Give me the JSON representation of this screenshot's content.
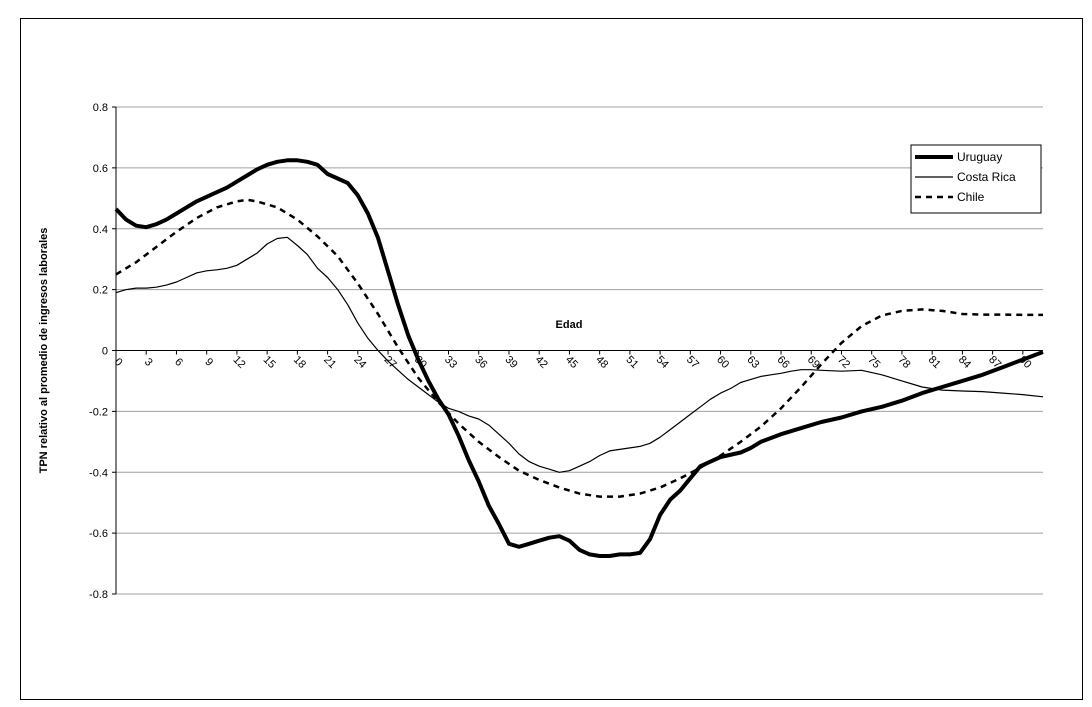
{
  "chart_data": {
    "type": "line",
    "xlabel": "Edad",
    "ylabel": "TPN relativo al promedio de ingresos laborales",
    "xlim": [
      0,
      92
    ],
    "ylim": [
      -0.8,
      0.8
    ],
    "y_ticks": [
      0.8,
      0.6,
      0.4,
      0.2,
      0,
      -0.2,
      -0.4,
      -0.6,
      -0.8
    ],
    "y_tick_labels": [
      "0.8",
      "0.6",
      "0.4",
      "0.2",
      "0",
      "-0.2",
      "-0.4",
      "-0.6",
      "-0.8"
    ],
    "x_ticks": [
      0,
      3,
      6,
      9,
      12,
      15,
      18,
      21,
      24,
      27,
      30,
      33,
      36,
      39,
      42,
      45,
      48,
      51,
      54,
      57,
      60,
      63,
      66,
      69,
      72,
      75,
      78,
      81,
      84,
      87,
      90
    ],
    "x_tick_labels": [
      "0",
      "3",
      "6",
      "9",
      "12",
      "15",
      "18",
      "21",
      "24",
      "27",
      "30",
      "33",
      "36",
      "39",
      "42",
      "45",
      "48",
      "51",
      "54",
      "57",
      "60",
      "63",
      "66",
      "69",
      "72",
      "75",
      "78",
      "81",
      "84",
      "87",
      "90"
    ],
    "grid": true,
    "legend_position": "top-right",
    "series": [
      {
        "name": "Uruguay",
        "style": "thick-solid",
        "points": [
          [
            0,
            0.465
          ],
          [
            1,
            0.43
          ],
          [
            2,
            0.41
          ],
          [
            3,
            0.405
          ],
          [
            4,
            0.415
          ],
          [
            5,
            0.43
          ],
          [
            6,
            0.45
          ],
          [
            7,
            0.47
          ],
          [
            8,
            0.49
          ],
          [
            9,
            0.505
          ],
          [
            10,
            0.52
          ],
          [
            11,
            0.535
          ],
          [
            12,
            0.555
          ],
          [
            13,
            0.575
          ],
          [
            14,
            0.595
          ],
          [
            15,
            0.61
          ],
          [
            16,
            0.62
          ],
          [
            17,
            0.625
          ],
          [
            18,
            0.625
          ],
          [
            19,
            0.62
          ],
          [
            20,
            0.61
          ],
          [
            21,
            0.58
          ],
          [
            22,
            0.565
          ],
          [
            23,
            0.55
          ],
          [
            24,
            0.51
          ],
          [
            25,
            0.45
          ],
          [
            26,
            0.37
          ],
          [
            27,
            0.26
          ],
          [
            28,
            0.15
          ],
          [
            29,
            0.05
          ],
          [
            30,
            -0.03
          ],
          [
            31,
            -0.1
          ],
          [
            32,
            -0.16
          ],
          [
            33,
            -0.21
          ],
          [
            34,
            -0.28
          ],
          [
            35,
            -0.36
          ],
          [
            36,
            -0.43
          ],
          [
            37,
            -0.51
          ],
          [
            38,
            -0.57
          ],
          [
            39,
            -0.635
          ],
          [
            40,
            -0.645
          ],
          [
            41,
            -0.635
          ],
          [
            42,
            -0.625
          ],
          [
            43,
            -0.615
          ],
          [
            44,
            -0.61
          ],
          [
            45,
            -0.625
          ],
          [
            46,
            -0.655
          ],
          [
            47,
            -0.67
          ],
          [
            48,
            -0.675
          ],
          [
            49,
            -0.675
          ],
          [
            50,
            -0.67
          ],
          [
            51,
            -0.67
          ],
          [
            52,
            -0.665
          ],
          [
            53,
            -0.62
          ],
          [
            54,
            -0.54
          ],
          [
            55,
            -0.49
          ],
          [
            56,
            -0.46
          ],
          [
            57,
            -0.42
          ],
          [
            58,
            -0.38
          ],
          [
            59,
            -0.365
          ],
          [
            60,
            -0.35
          ],
          [
            62,
            -0.335
          ],
          [
            63,
            -0.32
          ],
          [
            64,
            -0.3
          ],
          [
            66,
            -0.275
          ],
          [
            68,
            -0.255
          ],
          [
            70,
            -0.235
          ],
          [
            72,
            -0.22
          ],
          [
            74,
            -0.2
          ],
          [
            76,
            -0.185
          ],
          [
            78,
            -0.165
          ],
          [
            80,
            -0.14
          ],
          [
            82,
            -0.12
          ],
          [
            84,
            -0.1
          ],
          [
            86,
            -0.08
          ],
          [
            88,
            -0.055
          ],
          [
            90,
            -0.03
          ],
          [
            92,
            -0.005
          ]
        ]
      },
      {
        "name": "Costa Rica",
        "style": "thin-solid",
        "points": [
          [
            0,
            0.19
          ],
          [
            1,
            0.2
          ],
          [
            2,
            0.205
          ],
          [
            3,
            0.205
          ],
          [
            4,
            0.208
          ],
          [
            5,
            0.215
          ],
          [
            6,
            0.225
          ],
          [
            7,
            0.24
          ],
          [
            8,
            0.255
          ],
          [
            9,
            0.262
          ],
          [
            10,
            0.265
          ],
          [
            11,
            0.27
          ],
          [
            12,
            0.28
          ],
          [
            13,
            0.3
          ],
          [
            14,
            0.32
          ],
          [
            15,
            0.35
          ],
          [
            16,
            0.368
          ],
          [
            17,
            0.372
          ],
          [
            18,
            0.345
          ],
          [
            19,
            0.315
          ],
          [
            20,
            0.27
          ],
          [
            21,
            0.24
          ],
          [
            22,
            0.2
          ],
          [
            23,
            0.15
          ],
          [
            24,
            0.09
          ],
          [
            25,
            0.04
          ],
          [
            26,
            0.0
          ],
          [
            27,
            -0.035
          ],
          [
            28,
            -0.065
          ],
          [
            29,
            -0.095
          ],
          [
            30,
            -0.12
          ],
          [
            31,
            -0.145
          ],
          [
            32,
            -0.17
          ],
          [
            33,
            -0.19
          ],
          [
            34,
            -0.2
          ],
          [
            35,
            -0.215
          ],
          [
            36,
            -0.225
          ],
          [
            37,
            -0.245
          ],
          [
            38,
            -0.275
          ],
          [
            39,
            -0.305
          ],
          [
            40,
            -0.34
          ],
          [
            41,
            -0.365
          ],
          [
            42,
            -0.38
          ],
          [
            43,
            -0.39
          ],
          [
            44,
            -0.4
          ],
          [
            45,
            -0.395
          ],
          [
            46,
            -0.38
          ],
          [
            47,
            -0.365
          ],
          [
            48,
            -0.345
          ],
          [
            49,
            -0.33
          ],
          [
            50,
            -0.325
          ],
          [
            51,
            -0.32
          ],
          [
            52,
            -0.315
          ],
          [
            53,
            -0.305
          ],
          [
            54,
            -0.285
          ],
          [
            55,
            -0.26
          ],
          [
            56,
            -0.235
          ],
          [
            57,
            -0.21
          ],
          [
            58,
            -0.185
          ],
          [
            59,
            -0.16
          ],
          [
            60,
            -0.14
          ],
          [
            61,
            -0.125
          ],
          [
            62,
            -0.105
          ],
          [
            63,
            -0.095
          ],
          [
            64,
            -0.085
          ],
          [
            65,
            -0.08
          ],
          [
            66,
            -0.075
          ],
          [
            67,
            -0.068
          ],
          [
            68,
            -0.063
          ],
          [
            69,
            -0.063
          ],
          [
            70,
            -0.065
          ],
          [
            72,
            -0.068
          ],
          [
            74,
            -0.065
          ],
          [
            76,
            -0.08
          ],
          [
            78,
            -0.1
          ],
          [
            80,
            -0.12
          ],
          [
            82,
            -0.13
          ],
          [
            84,
            -0.133
          ],
          [
            86,
            -0.135
          ],
          [
            88,
            -0.14
          ],
          [
            90,
            -0.145
          ],
          [
            92,
            -0.152
          ]
        ]
      },
      {
        "name": "Chile",
        "style": "dashed",
        "points": [
          [
            0,
            0.25
          ],
          [
            2,
            0.29
          ],
          [
            4,
            0.34
          ],
          [
            6,
            0.39
          ],
          [
            8,
            0.435
          ],
          [
            10,
            0.47
          ],
          [
            12,
            0.49
          ],
          [
            13,
            0.495
          ],
          [
            14,
            0.49
          ],
          [
            16,
            0.47
          ],
          [
            18,
            0.43
          ],
          [
            20,
            0.375
          ],
          [
            22,
            0.31
          ],
          [
            24,
            0.22
          ],
          [
            26,
            0.12
          ],
          [
            28,
            0.01
          ],
          [
            30,
            -0.09
          ],
          [
            32,
            -0.17
          ],
          [
            34,
            -0.24
          ],
          [
            36,
            -0.3
          ],
          [
            38,
            -0.35
          ],
          [
            40,
            -0.395
          ],
          [
            42,
            -0.425
          ],
          [
            44,
            -0.45
          ],
          [
            46,
            -0.47
          ],
          [
            48,
            -0.48
          ],
          [
            50,
            -0.48
          ],
          [
            52,
            -0.47
          ],
          [
            54,
            -0.45
          ],
          [
            56,
            -0.42
          ],
          [
            58,
            -0.385
          ],
          [
            60,
            -0.345
          ],
          [
            62,
            -0.3
          ],
          [
            64,
            -0.25
          ],
          [
            66,
            -0.19
          ],
          [
            68,
            -0.12
          ],
          [
            70,
            -0.045
          ],
          [
            72,
            0.025
          ],
          [
            74,
            0.08
          ],
          [
            76,
            0.115
          ],
          [
            78,
            0.13
          ],
          [
            80,
            0.135
          ],
          [
            82,
            0.13
          ],
          [
            84,
            0.12
          ],
          [
            86,
            0.118
          ],
          [
            88,
            0.118
          ],
          [
            90,
            0.117
          ],
          [
            92,
            0.117
          ]
        ]
      }
    ]
  }
}
